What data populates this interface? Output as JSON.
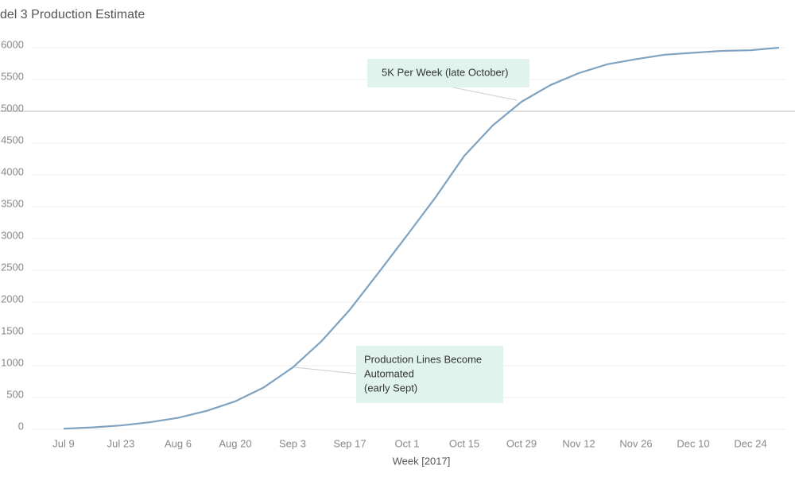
{
  "chart_data": {
    "type": "line",
    "title": "del 3 Production Estimate",
    "x_label": "Week [2017]",
    "categories": [
      "Jul 9",
      null,
      "Jul 23",
      null,
      "Aug 6",
      null,
      "Aug 20",
      null,
      "Sep 3",
      null,
      "Sep 17",
      null,
      "Oct 1",
      null,
      "Oct 15",
      null,
      "Oct 29",
      null,
      "Nov 12",
      null,
      "Nov 26",
      null,
      "Dec 10",
      null,
      "Dec 24",
      null
    ],
    "series": [
      {
        "name": "Production",
        "color": "#7fa2c0",
        "values": [
          10,
          30,
          60,
          110,
          180,
          290,
          440,
          660,
          970,
          1380,
          1880,
          2460,
          3050,
          3650,
          4300,
          4780,
          5150,
          5410,
          5600,
          5740,
          5820,
          5890,
          5920,
          5950,
          5960,
          6000
        ]
      }
    ],
    "ylim": [
      0,
      6000
    ],
    "yticks": [
      0,
      500,
      1000,
      1500,
      2000,
      2500,
      3000,
      3500,
      4000,
      4500,
      5000,
      5500,
      6000
    ],
    "grid": true,
    "reference_line": 5000,
    "annotations": [
      {
        "lines": [
          "5K Per Week (late October)"
        ]
      },
      {
        "lines": [
          "Production Lines Become",
          "Automated",
          "(early Sept)"
        ]
      }
    ]
  }
}
